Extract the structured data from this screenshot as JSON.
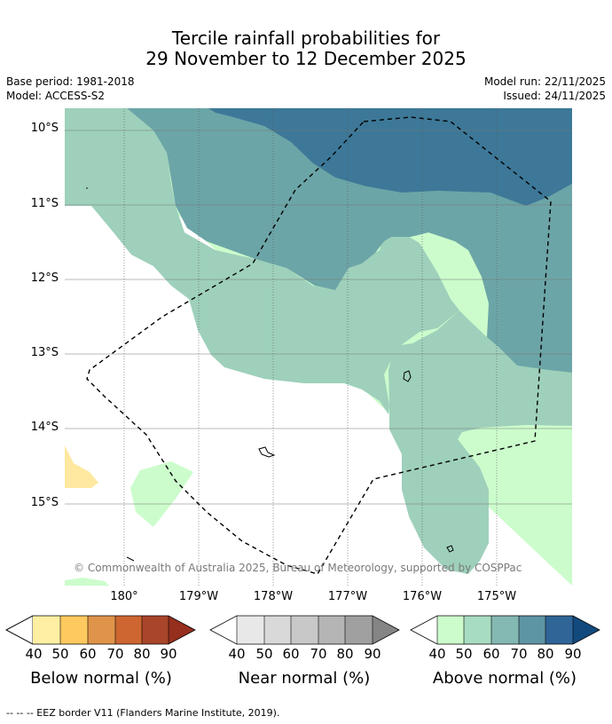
{
  "title": {
    "line1": "Tercile rainfall probabilities for",
    "line2": "29 November to 12 December 2025"
  },
  "meta": {
    "base_period": "Base period: 1981-2018",
    "model": "Model: ACCESS-S2",
    "model_run": "Model run: 22/11/2025",
    "issued": "Issued: 24/11/2025"
  },
  "axes": {
    "lat_labels": [
      "10°S",
      "11°S",
      "12°S",
      "13°S",
      "14°S",
      "15°S"
    ],
    "lon_labels": [
      "180°",
      "179°W",
      "178°W",
      "177°W",
      "176°W",
      "175°W"
    ]
  },
  "copyright": "© Commonwealth of Australia 2025, Bureau of Meteorology, supported by COSPPac",
  "colorbars": [
    {
      "label": "Below normal (%)",
      "ticks": [
        "40",
        "50",
        "60",
        "70",
        "80",
        "90"
      ],
      "colors": [
        "#ffefa3",
        "#fec95f",
        "#e0944a",
        "#cd6631",
        "#a8452a",
        "#962f1e"
      ]
    },
    {
      "label": "Near normal (%)",
      "ticks": [
        "40",
        "50",
        "60",
        "70",
        "80",
        "90"
      ],
      "colors": [
        "#e8e8e8",
        "#d9d9d9",
        "#c8c8c8",
        "#b5b5b5",
        "#a0a0a0",
        "#858585"
      ]
    },
    {
      "label": "Above normal (%)",
      "ticks": [
        "40",
        "50",
        "60",
        "70",
        "80",
        "90"
      ],
      "colors": [
        "#ccfccc",
        "#a8dcc1",
        "#84b8b2",
        "#5e95a4",
        "#2f6597",
        "#124a7e"
      ]
    }
  ],
  "footnote": "-- -- -- EEZ border V11 (Flanders Marine Institute, 2019).",
  "map_colors": {
    "above_40": "#ccfccc",
    "above_50": "#9ed0bb",
    "above_60": "#6ca5a7",
    "above_70": "#3d7898",
    "below_40": "#ffe8a0"
  }
}
